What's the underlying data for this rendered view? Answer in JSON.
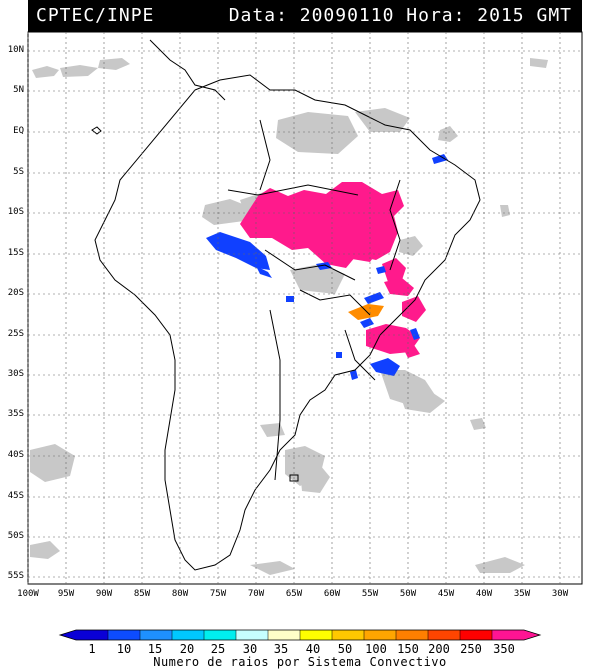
{
  "header": {
    "source": "CPTEC/INPE",
    "datetime": "Data: 20090110 Hora: 2015 GMT"
  },
  "map": {
    "lat_labels": [
      "10N",
      "5N",
      "EQ",
      "5S",
      "10S",
      "15S",
      "20S",
      "25S",
      "30S",
      "35S",
      "40S",
      "45S",
      "50S",
      "55S"
    ],
    "lon_labels": [
      "100W",
      "95W",
      "90W",
      "85W",
      "80W",
      "75W",
      "70W",
      "65W",
      "60W",
      "55W",
      "50W",
      "45W",
      "40W",
      "35W",
      "30W"
    ],
    "lon_range": [
      -100,
      -28
    ],
    "lat_range": [
      -56,
      12
    ],
    "grid": true
  },
  "colorbar": {
    "labels": [
      "1",
      "10",
      "15",
      "20",
      "25",
      "30",
      "35",
      "40",
      "50",
      "100",
      "150",
      "200",
      "250",
      "350"
    ],
    "colors": [
      "#0a00d6",
      "#0d4cff",
      "#1e90ff",
      "#00c8ff",
      "#00eeee",
      "#c6ffff",
      "#ffffc8",
      "#ffff00",
      "#ffc800",
      "#ffa500",
      "#ff7f00",
      "#ff4500",
      "#ff0000",
      "#ff1493"
    ],
    "title": "Numero de raios por Sistema Convectivo"
  },
  "colors": {
    "magenta_systems": "#ff1a8c",
    "blue_systems": "#1040ff",
    "orange_system": "#ff8c00",
    "cloud_cover": "#c8c8c8",
    "coastline": "#000000"
  }
}
